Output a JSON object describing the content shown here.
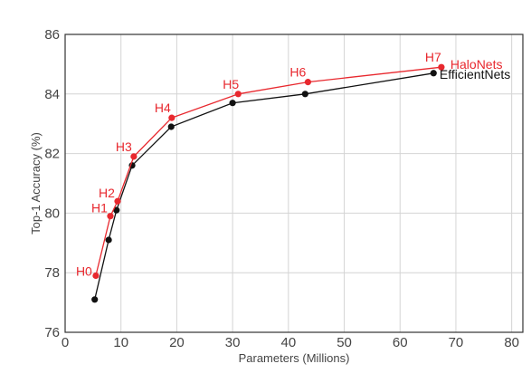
{
  "chart_data": {
    "type": "line",
    "xlabel": "Parameters (Millions)",
    "ylabel": "Top-1 Accuracy (%)",
    "xlim": [
      0,
      82
    ],
    "ylim": [
      76,
      86
    ],
    "xticks": [
      0,
      10,
      20,
      30,
      40,
      50,
      60,
      70,
      80
    ],
    "yticks": [
      76,
      78,
      80,
      82,
      84,
      86
    ],
    "grid": true,
    "legend": "top-right, inline labels at line ends",
    "series": [
      {
        "name": "HaloNets",
        "color": "#e8282e",
        "points": [
          {
            "x": 5.5,
            "y": 77.9,
            "label": "H0"
          },
          {
            "x": 8.1,
            "y": 79.9,
            "label": "H1"
          },
          {
            "x": 9.4,
            "y": 80.4,
            "label": "H2"
          },
          {
            "x": 12.3,
            "y": 81.9,
            "label": "H3"
          },
          {
            "x": 19.1,
            "y": 83.2,
            "label": "H4"
          },
          {
            "x": 31.0,
            "y": 84.0,
            "label": "H5"
          },
          {
            "x": 43.5,
            "y": 84.4,
            "label": "H6"
          },
          {
            "x": 67.4,
            "y": 84.9,
            "label": "H7"
          }
        ]
      },
      {
        "name": "EfficientNets",
        "color": "#111111",
        "points": [
          {
            "x": 5.3,
            "y": 77.1
          },
          {
            "x": 7.8,
            "y": 79.1
          },
          {
            "x": 9.2,
            "y": 80.1
          },
          {
            "x": 12.0,
            "y": 81.6
          },
          {
            "x": 19.0,
            "y": 82.9
          },
          {
            "x": 30.0,
            "y": 83.7
          },
          {
            "x": 43.0,
            "y": 84.0
          },
          {
            "x": 66.0,
            "y": 84.7
          }
        ]
      }
    ]
  }
}
